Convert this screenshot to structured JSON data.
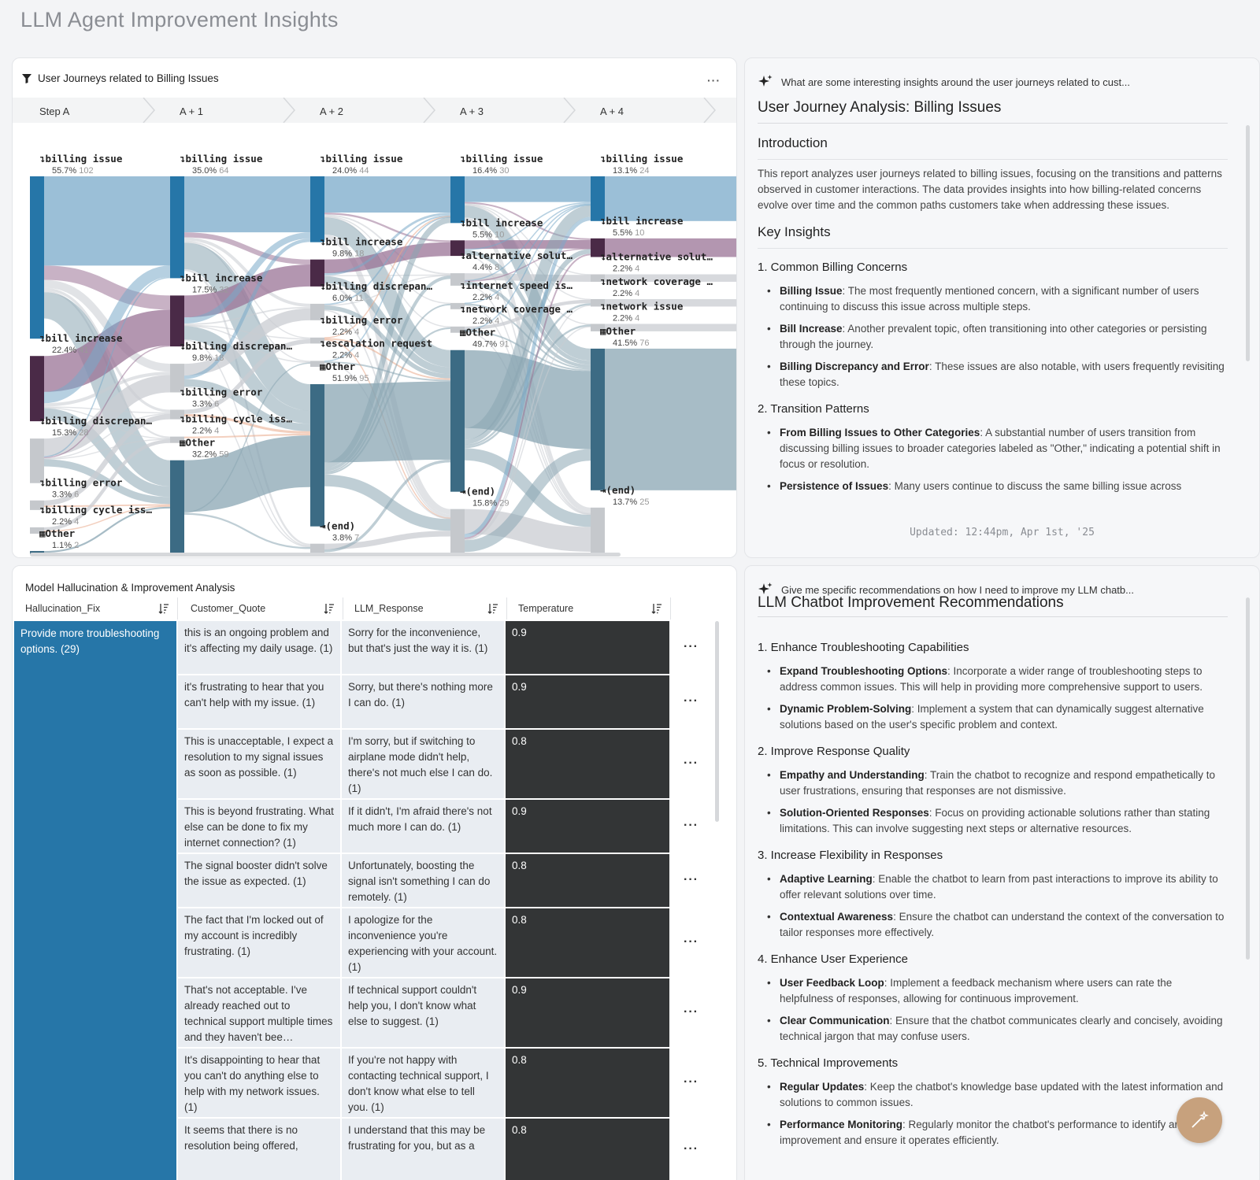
{
  "page": {
    "title": "LLM Agent Improvement Insights"
  },
  "sankey": {
    "title": "User Journeys related to Billing Issues",
    "more": "···",
    "steps": [
      "Step A",
      "A + 1",
      "A + 2",
      "A + 3",
      "A + 4"
    ],
    "columns": [
      {
        "nodes": [
          {
            "label": "billing issue",
            "pct": "55.7%",
            "count": "102",
            "icon": "arrow-down-right-icon"
          },
          {
            "label": "bill increase",
            "pct": "22.4%",
            "count": "41",
            "icon": "arrow-down-right-icon"
          },
          {
            "label": "billing discrepan…",
            "pct": "15.3%",
            "count": "28",
            "icon": "arrow-down-right-icon"
          },
          {
            "label": "billing error",
            "pct": "3.3%",
            "count": "6",
            "icon": "arrow-down-right-icon"
          },
          {
            "label": "billing cycle iss…",
            "pct": "2.2%",
            "count": "4",
            "icon": "arrow-down-right-icon"
          },
          {
            "label": "Other",
            "pct": "1.1%",
            "count": "2",
            "icon": "grid-icon"
          }
        ]
      },
      {
        "nodes": [
          {
            "label": "billing issue",
            "pct": "35.0%",
            "count": "64",
            "icon": "arrow-down-right-icon"
          },
          {
            "label": "bill increase",
            "pct": "17.5%",
            "count": "32",
            "icon": "arrow-down-right-icon"
          },
          {
            "label": "billing discrepan…",
            "pct": "9.8%",
            "count": "18",
            "icon": "arrow-down-right-icon"
          },
          {
            "label": "billing error",
            "pct": "3.3%",
            "count": "6",
            "icon": "arrow-down-right-icon"
          },
          {
            "label": "billing cycle iss…",
            "pct": "2.2%",
            "count": "4",
            "icon": "arrow-down-right-icon"
          },
          {
            "label": "Other",
            "pct": "32.2%",
            "count": "59",
            "icon": "grid-icon"
          }
        ]
      },
      {
        "nodes": [
          {
            "label": "billing issue",
            "pct": "24.0%",
            "count": "44",
            "icon": "arrow-down-right-icon"
          },
          {
            "label": "bill increase",
            "pct": "9.8%",
            "count": "18",
            "icon": "arrow-down-right-icon"
          },
          {
            "label": "billing discrepan…",
            "pct": "6.0%",
            "count": "11",
            "icon": "arrow-down-right-icon"
          },
          {
            "label": "billing error",
            "pct": "2.2%",
            "count": "4",
            "icon": "arrow-down-right-icon"
          },
          {
            "label": "escalation request",
            "pct": "2.2%",
            "count": "4",
            "icon": "arrow-down-right-icon"
          },
          {
            "label": "Other",
            "pct": "51.9%",
            "count": "95",
            "icon": "grid-icon"
          },
          {
            "label": "(end)",
            "pct": "3.8%",
            "count": "7",
            "icon": "exit-icon"
          }
        ]
      },
      {
        "nodes": [
          {
            "label": "billing issue",
            "pct": "16.4%",
            "count": "30",
            "icon": "arrow-down-right-icon"
          },
          {
            "label": "bill increase",
            "pct": "5.5%",
            "count": "10",
            "icon": "arrow-down-right-icon"
          },
          {
            "label": "alternative solut…",
            "pct": "4.4%",
            "count": "8",
            "icon": "arrow-down-right-icon"
          },
          {
            "label": "internet speed is…",
            "pct": "2.2%",
            "count": "4",
            "icon": "arrow-down-right-icon"
          },
          {
            "label": "network coverage …",
            "pct": "2.2%",
            "count": "4",
            "icon": "arrow-down-right-icon"
          },
          {
            "label": "Other",
            "pct": "49.7%",
            "count": "91",
            "icon": "grid-icon"
          },
          {
            "label": "(end)",
            "pct": "15.8%",
            "count": "29",
            "icon": "exit-icon"
          }
        ]
      },
      {
        "nodes": [
          {
            "label": "billing issue",
            "pct": "13.1%",
            "count": "24",
            "icon": "arrow-down-right-icon"
          },
          {
            "label": "bill increase",
            "pct": "5.5%",
            "count": "10",
            "icon": "arrow-down-right-icon"
          },
          {
            "label": "alternative solut…",
            "pct": "2.2%",
            "count": "4",
            "icon": "arrow-down-right-icon"
          },
          {
            "label": "network coverage …",
            "pct": "2.2%",
            "count": "4",
            "icon": "arrow-down-right-icon"
          },
          {
            "label": "network issue",
            "pct": "2.2%",
            "count": "4",
            "icon": "arrow-down-right-icon"
          },
          {
            "label": "Other",
            "pct": "41.5%",
            "count": "76",
            "icon": "grid-icon"
          },
          {
            "label": "(end)",
            "pct": "13.7%",
            "count": "25",
            "icon": "exit-icon"
          }
        ]
      }
    ],
    "colors": {
      "billing_issue": "#7aa9c9",
      "bill_increase": "#9a7396",
      "other": "#8aa5b3",
      "gray": "#c9ccd1",
      "orange": "#e9a98a",
      "dark_node": "#3c6b84"
    }
  },
  "insights": {
    "prompt": "What are some interesting insights around the user journeys related to cust...",
    "title": "User Journey Analysis: Billing Issues",
    "intro_heading": "Introduction",
    "intro_text": "This report analyzes user journeys related to billing issues, focusing on the transitions and patterns observed in customer interactions. The data provides insights into how billing-related concerns evolve over time and the common paths customers take when addressing these issues.",
    "key_heading": "Key Insights",
    "sections": [
      {
        "heading": "1. Common Billing Concerns",
        "items": [
          {
            "term": "Billing Issue",
            "text": ": The most frequently mentioned concern, with a significant number of users continuing to discuss this issue across multiple steps."
          },
          {
            "term": "Bill Increase",
            "text": ": Another prevalent topic, often transitioning into other categories or persisting through the journey."
          },
          {
            "term": "Billing Discrepancy and Error",
            "text": ": These issues are also notable, with users frequently revisiting these topics."
          }
        ]
      },
      {
        "heading": "2. Transition Patterns",
        "items": [
          {
            "term": "From Billing Issues to Other Categories",
            "text": ": A substantial number of users transition from discussing billing issues to broader categories labeled as \"Other,\" indicating a potential shift in focus or resolution."
          },
          {
            "term": "Persistence of Issues",
            "text": ": Many users continue to discuss the same billing issue across"
          }
        ]
      }
    ],
    "updated": "Updated: 12:44pm, Apr 1st, '25"
  },
  "table": {
    "title": "Model Hallucination & Improvement Analysis",
    "columns": [
      "Hallucination_Fix",
      "Customer_Quote",
      "LLM_Response",
      "Temperature"
    ],
    "fix_value": "Provide more troubleshooting options. (29)",
    "rows": [
      {
        "quote": "this is an ongoing problem and it's affecting my daily usage. (1)",
        "response": "Sorry for the inconvenience, but that's just the way it is. (1)",
        "temp": "0.9"
      },
      {
        "quote": "it's frustrating to hear that you can't help with my issue. (1)",
        "response": "Sorry, but there's nothing more I can do. (1)",
        "temp": "0.9"
      },
      {
        "quote": "This is unacceptable, I expect a resolution to my signal issues as soon as possible. (1)",
        "response": "I'm sorry, but if switching to airplane mode didn't help, there's not much else I can do. (1)",
        "temp": "0.8"
      },
      {
        "quote": "This is beyond frustrating. What else can be done to fix my internet connection? (1)",
        "response": "If it didn't, I'm afraid there's not much more I can do. (1)",
        "temp": "0.9"
      },
      {
        "quote": "The signal booster didn't solve the issue as expected. (1)",
        "response": "Unfortunately, boosting the signal isn't something I can do remotely. (1)",
        "temp": "0.8"
      },
      {
        "quote": "The fact that I'm locked out of my account is incredibly frustrating. (1)",
        "response": "I apologize for the inconvenience you're experiencing with your account. (1)",
        "temp": "0.8"
      },
      {
        "quote": "That's not acceptable. I've already reached out to technical support multiple times and they haven't bee…",
        "response": "If technical support couldn't help you, I don't know what else to suggest. (1)",
        "temp": "0.9"
      },
      {
        "quote": "It's disappointing to hear that you can't do anything else to help with my network issues. (1)",
        "response": "If you're not happy with contacting technical support, I don't know what else to tell you. (1)",
        "temp": "0.8"
      },
      {
        "quote": "It seems that there is no resolution being offered,",
        "response": "I understand that this may be frustrating for you, but as a",
        "temp": "0.8"
      }
    ],
    "row_more": "···"
  },
  "recommendations": {
    "prompt": "Give me specific recommendations on how I need to improve my LLM chatb...",
    "title": "LLM Chatbot Improvement Recommendations",
    "sections": [
      {
        "heading": "1. Enhance Troubleshooting Capabilities",
        "items": [
          {
            "term": "Expand Troubleshooting Options",
            "text": ": Incorporate a wider range of troubleshooting steps to address common issues. This will help in providing more comprehensive support to users."
          },
          {
            "term": "Dynamic Problem-Solving",
            "text": ": Implement a system that can dynamically suggest alternative solutions based on the user's specific problem and context."
          }
        ]
      },
      {
        "heading": "2. Improve Response Quality",
        "items": [
          {
            "term": "Empathy and Understanding",
            "text": ": Train the chatbot to recognize and respond empathetically to user frustrations, ensuring that responses are not dismissive."
          },
          {
            "term": "Solution-Oriented Responses",
            "text": ": Focus on providing actionable solutions rather than stating limitations. This can involve suggesting next steps or alternative resources."
          }
        ]
      },
      {
        "heading": "3. Increase Flexibility in Responses",
        "items": [
          {
            "term": "Adaptive Learning",
            "text": ": Enable the chatbot to learn from past interactions to improve its ability to offer relevant solutions over time."
          },
          {
            "term": "Contextual Awareness",
            "text": ": Ensure the chatbot can understand the context of the conversation to tailor responses more effectively."
          }
        ]
      },
      {
        "heading": "4. Enhance User Experience",
        "items": [
          {
            "term": "User Feedback Loop",
            "text": ": Implement a feedback mechanism where users can rate the helpfulness of responses, allowing for continuous improvement."
          },
          {
            "term": "Clear Communication",
            "text": ": Ensure that the chatbot communicates clearly and concisely, avoiding technical jargon that may confuse users."
          }
        ]
      },
      {
        "heading": "5. Technical Improvements",
        "items": [
          {
            "term": "Regular Updates",
            "text": ": Keep the chatbot's knowledge base updated with the latest information and solutions to common issues."
          },
          {
            "term": "Performance Monitoring",
            "text": ": Regularly monitor the chatbot's performance to identify areas for improvement and ensure it operates efficiently."
          }
        ]
      }
    ]
  }
}
